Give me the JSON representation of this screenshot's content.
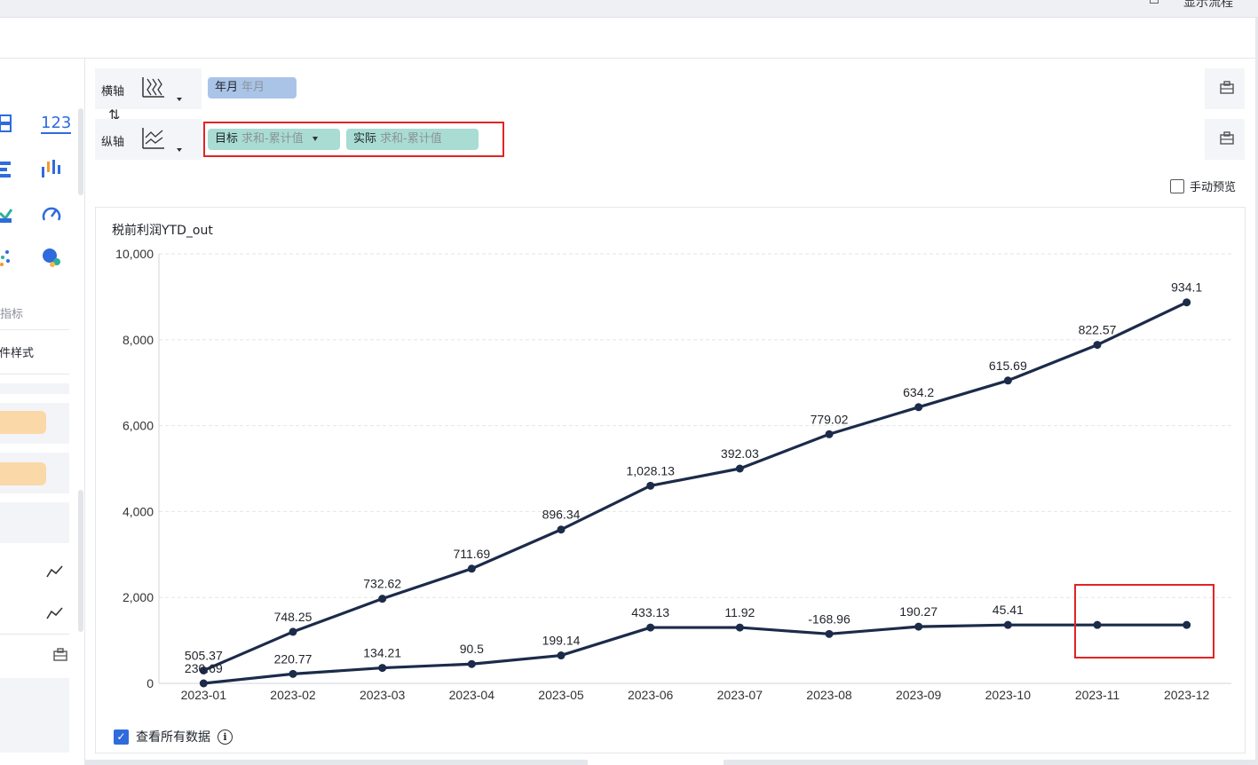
{
  "topbar": {
    "text": "显示流程"
  },
  "left_panel": {
    "icon_label_123": "123",
    "section_label": "指标",
    "style_label": "组件样式"
  },
  "axes": {
    "x_label": "横轴",
    "y_label": "纵轴",
    "x_field": {
      "name": "年月",
      "sub": "年月"
    },
    "y_fields": [
      {
        "name": "目标",
        "sub": "求和-累计值"
      },
      {
        "name": "实际",
        "sub": "求和-累计值"
      }
    ]
  },
  "manual_preview": {
    "label": "手动预览",
    "checked": false
  },
  "chart_title": "税前利润YTD_out",
  "footer": {
    "view_all_label": "查看所有数据",
    "checked": true
  },
  "colors": {
    "line": "#1c2b4a",
    "tag_blue": "#aac4e8",
    "tag_teal": "#a9dcd3",
    "highlight": "#e02424"
  },
  "chart_data": {
    "type": "line",
    "categories": [
      "2023-01",
      "2023-02",
      "2023-03",
      "2023-04",
      "2023-05",
      "2023-06",
      "2023-07",
      "2023-08",
      "2023-09",
      "2023-10",
      "2023-11",
      "2023-12"
    ],
    "y_ticks": [
      "10,000",
      "8,000",
      "6,000",
      "4,000",
      "2,000",
      "0"
    ],
    "ylim": [
      0,
      10000
    ],
    "grid": true,
    "series": [
      {
        "values": [
          300,
          1200,
          1970,
          2670,
          3580,
          4600,
          5000,
          5800,
          6430,
          7050,
          7880,
          8870
        ],
        "labels": [
          "505.37",
          "748.25",
          "732.62",
          "711.69",
          "896.34",
          "1,028.13",
          "392.03",
          "779.02",
          "634.2",
          "615.69",
          "822.57",
          "934.1"
        ]
      },
      {
        "values": [
          0,
          220,
          360,
          450,
          650,
          1300,
          1300,
          1150,
          1320,
          1360,
          1360,
          1360
        ],
        "labels": [
          "230.69",
          "220.77",
          "134.21",
          "90.5",
          "199.14",
          "433.13",
          "11.92",
          "-168.96",
          "190.27",
          "45.41",
          "",
          ""
        ]
      }
    ]
  }
}
